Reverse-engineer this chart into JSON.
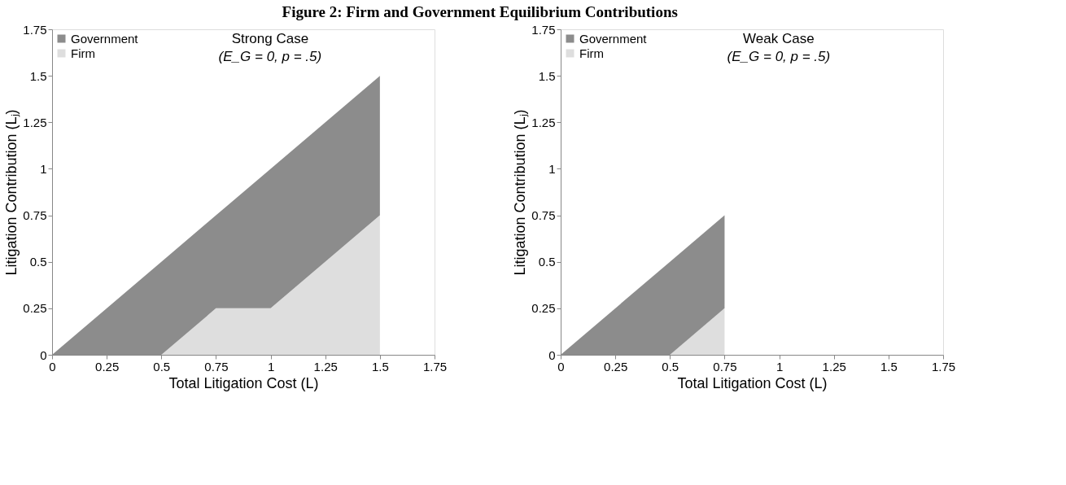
{
  "chart_data": [
    {
      "type": "area",
      "title": "Figure 2: Firm and Government Equilibrium Contributions",
      "stacked": true,
      "xlabel": "Total Litigation Cost (L)",
      "ylabel": "Litigation Contribution (Lⱼ)",
      "annotations": [
        "Strong Case",
        "(E_G = 0, p = .5)"
      ],
      "x": [
        0,
        0.5,
        0.75,
        1,
        1.5
      ],
      "series": [
        {
          "name": "Firm",
          "color": "#dedede",
          "values": [
            0,
            0,
            0.25,
            0.25,
            0.75
          ]
        },
        {
          "name": "Government",
          "color": "#8c8c8c",
          "values": [
            0,
            0.5,
            0.5,
            0.75,
            0.75
          ]
        }
      ],
      "xlim": [
        0,
        1.75
      ],
      "ylim": [
        0,
        1.75
      ],
      "xticks": [
        0,
        0.25,
        0.5,
        0.75,
        1,
        1.25,
        1.5,
        1.75
      ],
      "yticks": [
        0,
        0.25,
        0.5,
        0.75,
        1,
        1.25,
        1.5,
        1.75
      ],
      "grid": false,
      "legend": "top left"
    },
    {
      "type": "area",
      "stacked": true,
      "xlabel": "Total Litigation Cost (L)",
      "ylabel": "Litigation Contribution (Lⱼ)",
      "annotations": [
        "Weak Case",
        "(E_G = 0, p = .5)"
      ],
      "x": [
        0,
        0.5,
        0.75
      ],
      "series": [
        {
          "name": "Firm",
          "color": "#dedede",
          "values": [
            0,
            0,
            0.25
          ]
        },
        {
          "name": "Government",
          "color": "#8c8c8c",
          "values": [
            0,
            0.5,
            0.5
          ]
        }
      ],
      "xlim": [
        0,
        1.75
      ],
      "ylim": [
        0,
        1.75
      ],
      "xticks": [
        0,
        0.25,
        0.5,
        0.75,
        1,
        1.25,
        1.5,
        1.75
      ],
      "yticks": [
        0,
        0.25,
        0.5,
        0.75,
        1,
        1.25,
        1.5,
        1.75
      ],
      "grid": false,
      "legend": "top left"
    }
  ]
}
